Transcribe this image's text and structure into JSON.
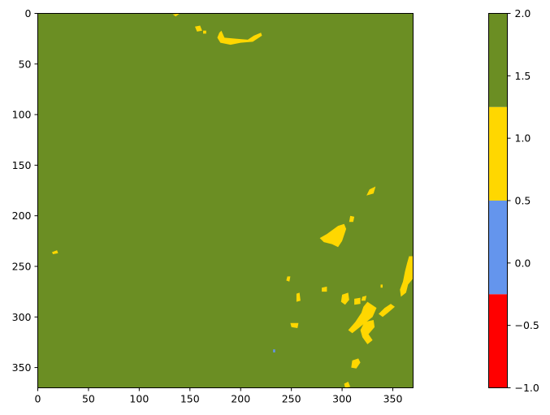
{
  "chart_data": [
    {
      "type": "heatmap",
      "title": "",
      "xlabel": "",
      "ylabel": "",
      "xlim": [
        0,
        370
      ],
      "ylim": [
        370,
        0
      ],
      "x_ticks": [
        0,
        50,
        100,
        150,
        200,
        250,
        300,
        350
      ],
      "y_ticks": [
        0,
        50,
        100,
        150,
        200,
        250,
        300,
        350
      ],
      "grid": false,
      "background_value": 2,
      "background_color": "#6b8e23",
      "patches": [
        {
          "value": 1,
          "color": "#ffd700",
          "points": [
            [
              140,
              0
            ],
            [
              136,
              3
            ],
            [
              133,
              1
            ]
          ]
        },
        {
          "value": 1,
          "color": "#ffd700",
          "points": [
            [
              155,
              13
            ],
            [
              160,
              12
            ],
            [
              162,
              17
            ],
            [
              157,
              18
            ]
          ]
        },
        {
          "value": 1,
          "color": "#ffd700",
          "points": [
            [
              163,
              17
            ],
            [
              166,
              17
            ],
            [
              166,
              20
            ],
            [
              163,
              20
            ]
          ]
        },
        {
          "value": 1,
          "color": "#ffd700",
          "points": [
            [
              181,
              17
            ],
            [
              184,
              24
            ],
            [
              195,
              25
            ],
            [
              207,
              26
            ],
            [
              213,
              22
            ],
            [
              220,
              19
            ],
            [
              221,
              22
            ],
            [
              212,
              28
            ],
            [
              200,
              29
            ],
            [
              190,
              31
            ],
            [
              180,
              29
            ],
            [
              177,
              24
            ],
            [
              179,
              19
            ]
          ]
        },
        {
          "value": 1,
          "color": "#ffd700",
          "points": [
            [
              296,
              210
            ],
            [
              302,
              208
            ],
            [
              304,
              213
            ],
            [
              300,
              225
            ],
            [
              296,
              231
            ],
            [
              290,
              228
            ],
            [
              282,
              226
            ],
            [
              278,
              222
            ],
            [
              285,
              218
            ]
          ]
        },
        {
          "value": 1,
          "color": "#ffd700",
          "points": [
            [
              308,
              200
            ],
            [
              312,
              201
            ],
            [
              311,
              206
            ],
            [
              307,
              206
            ]
          ]
        },
        {
          "value": 1,
          "color": "#ffd700",
          "points": [
            [
              327,
              174
            ],
            [
              333,
              171
            ],
            [
              331,
              178
            ],
            [
              324,
              180
            ]
          ]
        },
        {
          "value": 1,
          "color": "#ffd700",
          "points": [
            [
              14,
              236
            ],
            [
              19,
              234
            ],
            [
              20,
              237
            ],
            [
              15,
              238
            ]
          ]
        },
        {
          "value": 1,
          "color": "#ffd700",
          "points": [
            [
              366,
              240
            ],
            [
              370,
              240
            ],
            [
              370,
              262
            ],
            [
              365,
              268
            ],
            [
              363,
              276
            ],
            [
              358,
              280
            ],
            [
              357,
              273
            ],
            [
              360,
              265
            ],
            [
              362,
              255
            ],
            [
              364,
              247
            ]
          ]
        },
        {
          "value": 1,
          "color": "#ffd700",
          "points": [
            [
              325,
              285
            ],
            [
              334,
              291
            ],
            [
              330,
              300
            ],
            [
              320,
              308
            ],
            [
              310,
              316
            ],
            [
              306,
              313
            ],
            [
              313,
              305
            ],
            [
              319,
              296
            ],
            [
              321,
              290
            ]
          ]
        },
        {
          "value": 1,
          "color": "#ffd700",
          "points": [
            [
              322,
              305
            ],
            [
              331,
              303
            ],
            [
              332,
              310
            ],
            [
              326,
              317
            ],
            [
              330,
              323
            ],
            [
              325,
              327
            ],
            [
              320,
              320
            ],
            [
              318,
              313
            ]
          ]
        },
        {
          "value": 1,
          "color": "#ffd700",
          "points": [
            [
              342,
              291
            ],
            [
              348,
              287
            ],
            [
              352,
              290
            ],
            [
              345,
              296
            ],
            [
              340,
              300
            ],
            [
              336,
              297
            ]
          ]
        },
        {
          "value": 1,
          "color": "#ffd700",
          "points": [
            [
              255,
              277
            ],
            [
              258,
              276
            ],
            [
              259,
              284
            ],
            [
              255,
              285
            ]
          ]
        },
        {
          "value": 1,
          "color": "#ffd700",
          "points": [
            [
              246,
              260
            ],
            [
              249,
              260
            ],
            [
              248,
              265
            ],
            [
              245,
              264
            ]
          ]
        },
        {
          "value": 1,
          "color": "#ffd700",
          "points": [
            [
              249,
              306
            ],
            [
              257,
              306
            ],
            [
              256,
              311
            ],
            [
              250,
              310
            ]
          ]
        },
        {
          "value": 1,
          "color": "#ffd700",
          "points": [
            [
              280,
              271
            ],
            [
              285,
              270
            ],
            [
              285,
              275
            ],
            [
              280,
              275
            ]
          ]
        },
        {
          "value": 1,
          "color": "#ffd700",
          "points": [
            [
              300,
              278
            ],
            [
              306,
              276
            ],
            [
              307,
              283
            ],
            [
              303,
              288
            ],
            [
              299,
              285
            ]
          ]
        },
        {
          "value": 1,
          "color": "#ffd700",
          "points": [
            [
              312,
              282
            ],
            [
              318,
              281
            ],
            [
              318,
              287
            ],
            [
              312,
              288
            ]
          ]
        },
        {
          "value": 1,
          "color": "#ffd700",
          "points": [
            [
              320,
              280
            ],
            [
              324,
              279
            ],
            [
              323,
              284
            ],
            [
              319,
              284
            ]
          ]
        },
        {
          "value": 1,
          "color": "#ffd700",
          "points": [
            [
              310,
              343
            ],
            [
              316,
              341
            ],
            [
              318,
              345
            ],
            [
              314,
              351
            ],
            [
              309,
              350
            ]
          ]
        },
        {
          "value": 1,
          "color": "#ffd700",
          "points": [
            [
              302,
              366
            ],
            [
              306,
              364
            ],
            [
              308,
              369
            ],
            [
              303,
              370
            ]
          ]
        },
        {
          "value": 1,
          "color": "#ffd700",
          "points": [
            [
              338,
              268
            ],
            [
              340,
              268
            ],
            [
              340,
              271
            ],
            [
              338,
              271
            ]
          ]
        },
        {
          "value": 0,
          "color": "#6495ed",
          "points": [
            [
              232,
              332
            ],
            [
              234,
              332
            ],
            [
              234,
              335
            ],
            [
              232,
              335
            ]
          ]
        }
      ]
    },
    {
      "type": "colorbar",
      "range": [
        -1.0,
        2.0
      ],
      "ticks": [
        -1.0,
        -0.5,
        0.0,
        0.5,
        1.0,
        1.5,
        2.0
      ],
      "tick_labels": [
        "−1.0",
        "−0.5",
        "0.0",
        "0.5",
        "1.0",
        "1.5",
        "2.0"
      ],
      "segments": [
        {
          "from": -1.0,
          "to": -0.25,
          "color": "#ff0000"
        },
        {
          "from": -0.25,
          "to": 0.5,
          "color": "#6495ed"
        },
        {
          "from": 0.5,
          "to": 1.25,
          "color": "#ffd700"
        },
        {
          "from": 1.25,
          "to": 2.0,
          "color": "#6b8e23"
        }
      ]
    }
  ]
}
